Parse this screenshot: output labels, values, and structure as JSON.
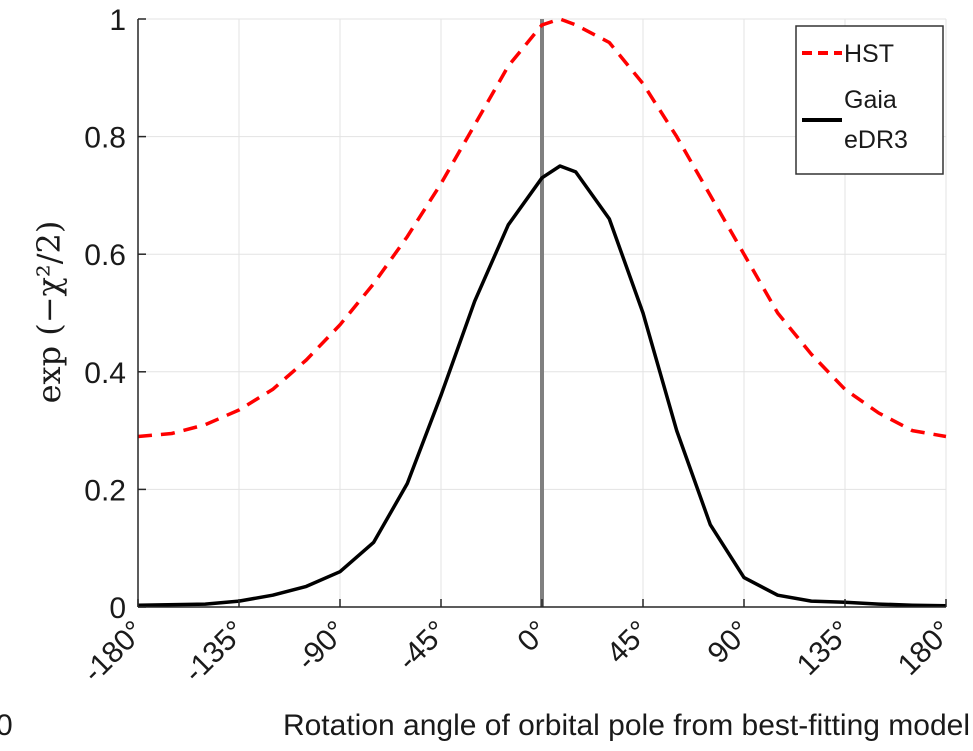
{
  "chart_data": {
    "type": "line",
    "xlabel": "Rotation angle of orbital pole from best-fitting model",
    "ylabel": "exp (−χ²/2)",
    "xlim": [
      -180,
      180
    ],
    "ylim": [
      0,
      1
    ],
    "x_ticks": [
      -180,
      -135,
      -90,
      -45,
      0,
      45,
      90,
      135,
      180
    ],
    "x_tick_labels": [
      "-180°",
      "-135°",
      "-90°",
      "-45°",
      "0°",
      "45°",
      "90°",
      "135°",
      "180°"
    ],
    "y_ticks": [
      0,
      0.2,
      0.4,
      0.6,
      0.8,
      1
    ],
    "y_tick_labels": [
      "0",
      "0.2",
      "0.4",
      "0.6",
      "0.8",
      "1"
    ],
    "grid": true,
    "legend_position": "top-right",
    "reference_line": {
      "x": 0,
      "color": "#808080"
    },
    "edge_fragment": "0",
    "series": [
      {
        "name": "HST",
        "style": "dashed",
        "color": "#ff0000",
        "x": [
          -180,
          -165,
          -150,
          -135,
          -120,
          -105,
          -90,
          -75,
          -60,
          -45,
          -30,
          -15,
          0,
          8,
          15,
          30,
          45,
          60,
          75,
          90,
          105,
          120,
          135,
          150,
          165,
          180
        ],
        "y": [
          0.29,
          0.295,
          0.31,
          0.335,
          0.37,
          0.42,
          0.48,
          0.55,
          0.63,
          0.72,
          0.82,
          0.92,
          0.99,
          1.0,
          0.99,
          0.96,
          0.89,
          0.8,
          0.7,
          0.6,
          0.5,
          0.43,
          0.37,
          0.33,
          0.3,
          0.29
        ]
      },
      {
        "name": "Gaia\neDR3",
        "style": "solid",
        "color": "#000000",
        "x": [
          -180,
          -150,
          -135,
          -120,
          -105,
          -90,
          -75,
          -60,
          -45,
          -30,
          -15,
          0,
          8,
          15,
          30,
          45,
          60,
          75,
          90,
          105,
          120,
          135,
          150,
          165,
          180
        ],
        "y": [
          0.003,
          0.005,
          0.01,
          0.02,
          0.035,
          0.06,
          0.11,
          0.21,
          0.36,
          0.52,
          0.65,
          0.73,
          0.75,
          0.74,
          0.66,
          0.5,
          0.3,
          0.14,
          0.05,
          0.02,
          0.01,
          0.008,
          0.005,
          0.003,
          0.002
        ]
      }
    ]
  }
}
